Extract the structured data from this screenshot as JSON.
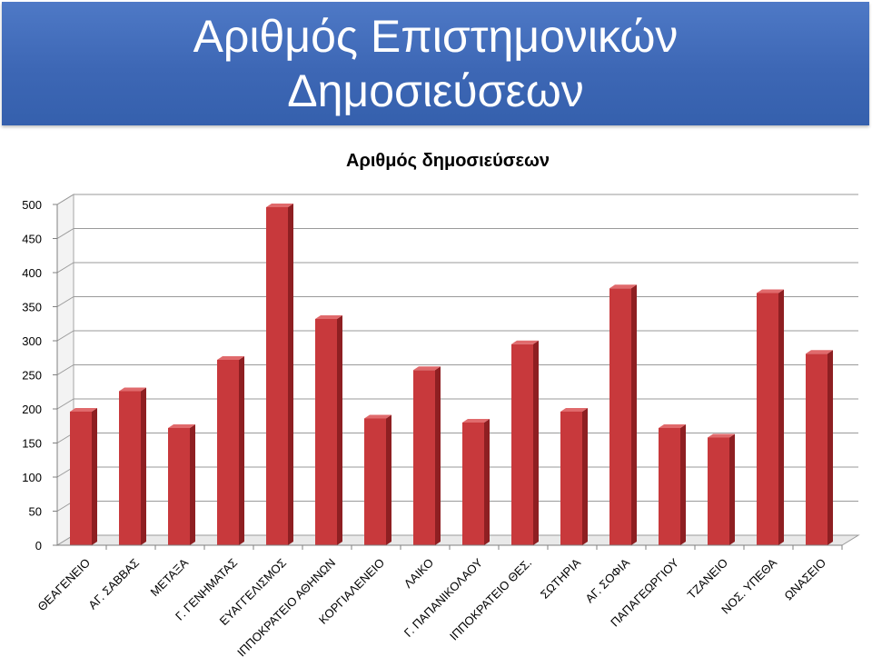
{
  "slide": {
    "title_line1": "Αριθμός Επιστημονικών",
    "title_line2": "Δημοσιεύσεων"
  },
  "colors": {
    "banner": "#3d67b5",
    "bar_front": "#c8393c",
    "bar_side": "#8e1f22",
    "bar_top": "#e06a6c"
  },
  "chart_data": {
    "type": "bar",
    "title": "Αριθμός δημοσιεύσεων",
    "categories": [
      "ΘΕΑΓΕΝΕΙΟ",
      "ΑΓ. ΣΑΒΒΑΣ",
      "ΜΕΤΑΞΑ",
      "Γ. ΓΕΝΗΜΑΤΑΣ",
      "ΕΥΑΓΓΕΛΙΣΜΟΣ",
      "ΙΠΠΟΚΡΑΤΕΙΟ ΑΘΗΝΩΝ",
      "ΚΟΡΓΙΑΛΕΝΕΙΟ",
      "ΛΑΙΚΟ",
      "Γ. ΠΑΠΑΝΙΚΟΛΑΟΥ",
      "ΙΠΠΟΚΡΑΤΕΙΟ ΘΕΣ.",
      "ΣΩΤΗΡΙΑ",
      "ΑΓ. ΣΟΦΙΑ",
      "ΠΑΠΑΓΕΩΡΓΙΟΥ",
      "ΤΖΑΝΕΙΟ",
      "ΝΟΣ. ΥΠΕΘΑ",
      "ΩΝΑΣΕΙΟ"
    ],
    "values": [
      196,
      226,
      172,
      272,
      496,
      332,
      186,
      257,
      180,
      295,
      196,
      377,
      172,
      158,
      370,
      281
    ],
    "ylim": [
      0,
      500
    ],
    "yticks": [
      "0",
      "50",
      "100",
      "150",
      "200",
      "250",
      "300",
      "350",
      "400",
      "450",
      "500"
    ],
    "grid": true,
    "legend": "none"
  }
}
